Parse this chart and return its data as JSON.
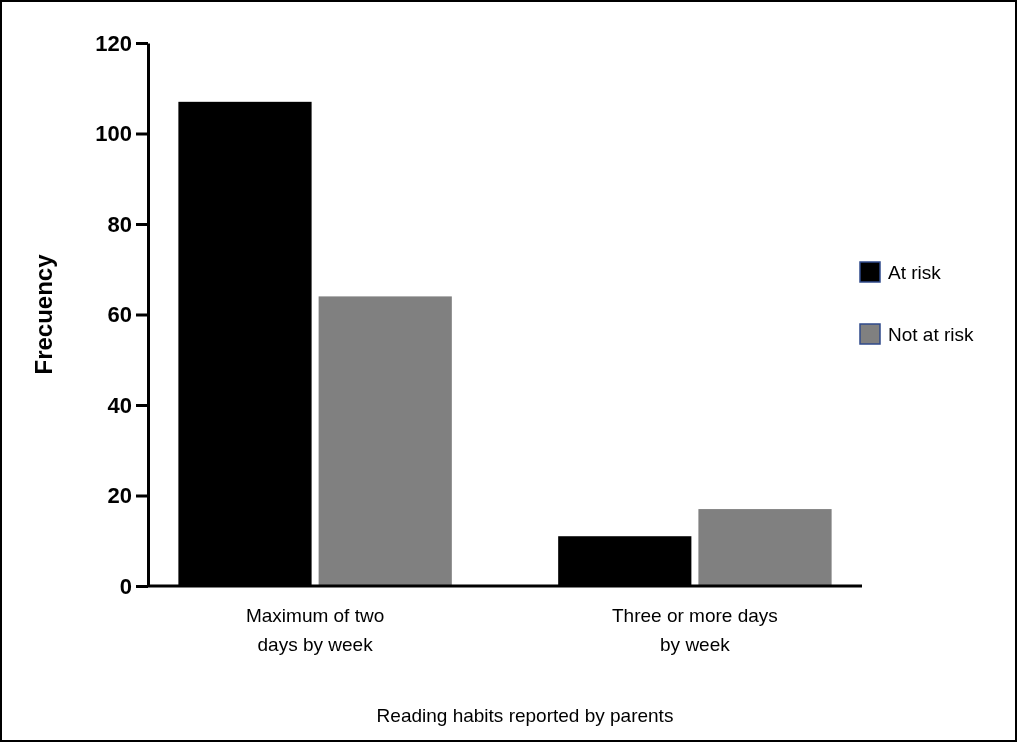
{
  "chart_data": {
    "type": "bar",
    "xlabel": "Reading habits reported by parents",
    "ylabel": "Frecuency",
    "categories": [
      "Maximum of two days by week",
      "Three or more days by week"
    ],
    "series": [
      {
        "name": "At risk",
        "color": "#000000",
        "values": [
          107,
          11
        ]
      },
      {
        "name": "Not at risk",
        "color": "#808080",
        "values": [
          64,
          17
        ]
      }
    ],
    "ylim": [
      0,
      120
    ],
    "yticks": [
      0,
      20,
      40,
      60,
      80,
      100,
      120
    ],
    "legend": "right"
  }
}
